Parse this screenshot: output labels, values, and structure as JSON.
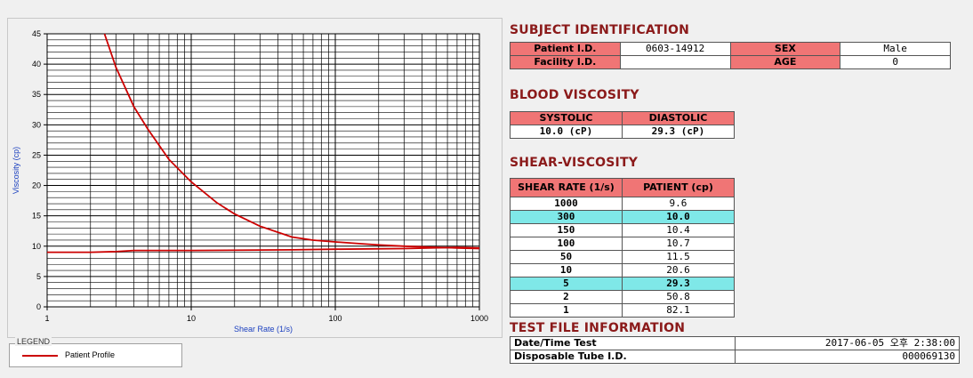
{
  "chart_data": {
    "type": "line",
    "xscale": "log",
    "xlim": [
      1,
      1000
    ],
    "ylim": [
      0,
      45
    ],
    "xticks": [
      "1",
      "10",
      "100",
      "1000"
    ],
    "yticks": [
      "0",
      "5",
      "10",
      "15",
      "20",
      "25",
      "30",
      "35",
      "40",
      "45"
    ],
    "xlabel": "Shear Rate (1/s)",
    "ylabel": "Viscosity (cp)",
    "grid": true,
    "series": [
      {
        "name": "Patient Profile",
        "color": "#cc0000",
        "x": [
          2.5,
          3,
          4,
          5,
          7,
          10,
          15,
          20,
          30,
          50,
          70,
          100,
          150,
          200,
          300,
          500,
          700,
          1000
        ],
        "y": [
          45,
          39.5,
          33,
          29.3,
          24.3,
          20.6,
          17.2,
          15.3,
          13.3,
          11.5,
          11.0,
          10.7,
          10.4,
          10.2,
          10.0,
          9.8,
          9.7,
          9.6
        ]
      },
      {
        "color": "#cc0000",
        "x": [
          1,
          2,
          3,
          4,
          10,
          50,
          100,
          300,
          700,
          1000
        ],
        "y": [
          9.0,
          9.0,
          9.1,
          9.3,
          9.3,
          9.4,
          9.5,
          9.6,
          9.8,
          9.7
        ]
      }
    ]
  },
  "legend": {
    "title": "LEGEND",
    "label": "Patient Profile"
  },
  "subject": {
    "title": "SUBJECT IDENTIFICATION",
    "patient_id_label": "Patient I.D.",
    "patient_id": "0603-14912",
    "sex_label": "SEX",
    "sex": "Male",
    "facility_label": "Facility I.D.",
    "facility": "",
    "age_label": "AGE",
    "age": "0"
  },
  "blood": {
    "title": "BLOOD VISCOSITY",
    "systolic_label": "SYSTOLIC",
    "diastolic_label": "DIASTOLIC",
    "systolic": "10.0 (cP)",
    "diastolic": "29.3 (cP)"
  },
  "shear": {
    "title": "SHEAR-VISCOSITY",
    "col1": "SHEAR RATE (1/s)",
    "col2": "PATIENT (cp)",
    "rows": [
      {
        "rate": "1000",
        "val": "9.6",
        "hl": false
      },
      {
        "rate": "300",
        "val": "10.0",
        "hl": true
      },
      {
        "rate": "150",
        "val": "10.4",
        "hl": false
      },
      {
        "rate": "100",
        "val": "10.7",
        "hl": false
      },
      {
        "rate": "50",
        "val": "11.5",
        "hl": false
      },
      {
        "rate": "10",
        "val": "20.6",
        "hl": false
      },
      {
        "rate": "5",
        "val": "29.3",
        "hl": true
      },
      {
        "rate": "2",
        "val": "50.8",
        "hl": false
      },
      {
        "rate": "1",
        "val": "82.1",
        "hl": false
      }
    ]
  },
  "testfile": {
    "title": "TEST FILE INFORMATION",
    "date_label": "Date/Time Test",
    "date": "2017-06-05  오후 2:38:00",
    "tube_label": "Disposable Tube I.D.",
    "tube": "000069130"
  }
}
